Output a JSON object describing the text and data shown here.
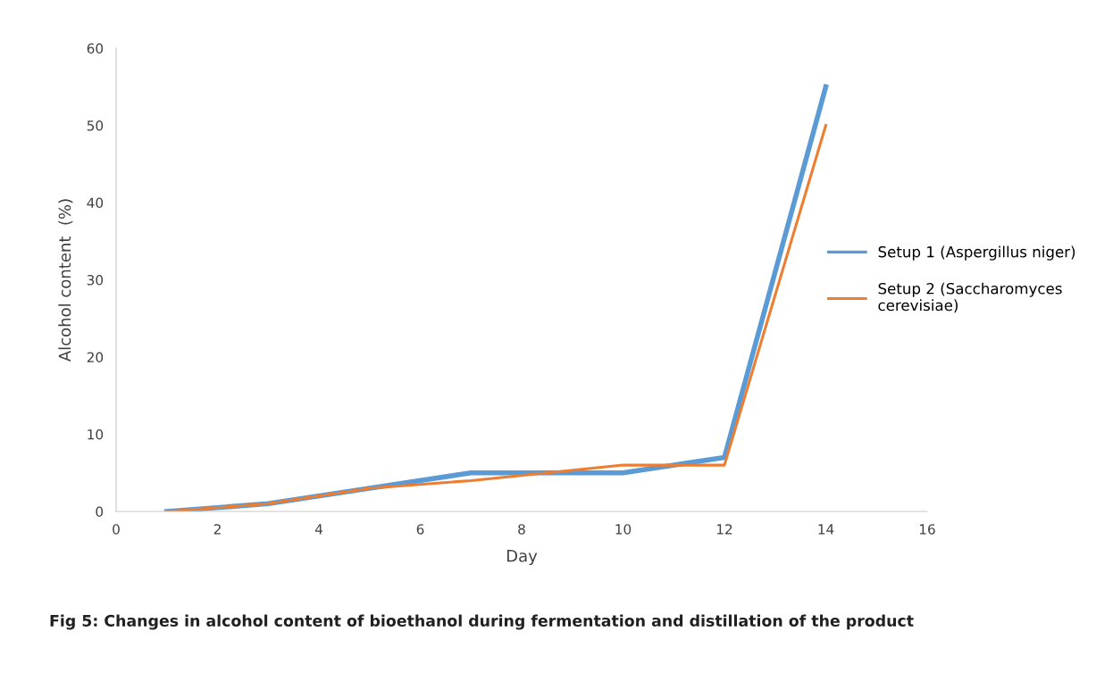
{
  "chart_data": {
    "type": "line",
    "xlabel": "Day",
    "ylabel": "Alcohol content  (%)",
    "x": [
      1,
      3,
      5,
      7,
      10,
      12,
      14
    ],
    "series": [
      {
        "name": "Setup 1 (Aspergillus niger)",
        "color": "#5b9bd5",
        "values": [
          0,
          1,
          3,
          5,
          5,
          7,
          55
        ]
      },
      {
        "name": "Setup 2 (Saccharomyces cerevisiae)",
        "color": "#ed7d31",
        "values": [
          0,
          1,
          3,
          4,
          6,
          6,
          50
        ]
      }
    ],
    "xlim": [
      0,
      16
    ],
    "xticks": [
      0,
      2,
      4,
      6,
      8,
      10,
      12,
      14,
      16
    ],
    "ylim": [
      0,
      60
    ],
    "yticks": [
      0,
      10,
      20,
      30,
      40,
      50,
      60
    ],
    "grid": false,
    "legend": "right",
    "marker": "none",
    "line_style": "solid",
    "annotations": [
      "Fig 5: Changes in alcohol content of bioethanol during fermentation and distillation of the product"
    ]
  }
}
